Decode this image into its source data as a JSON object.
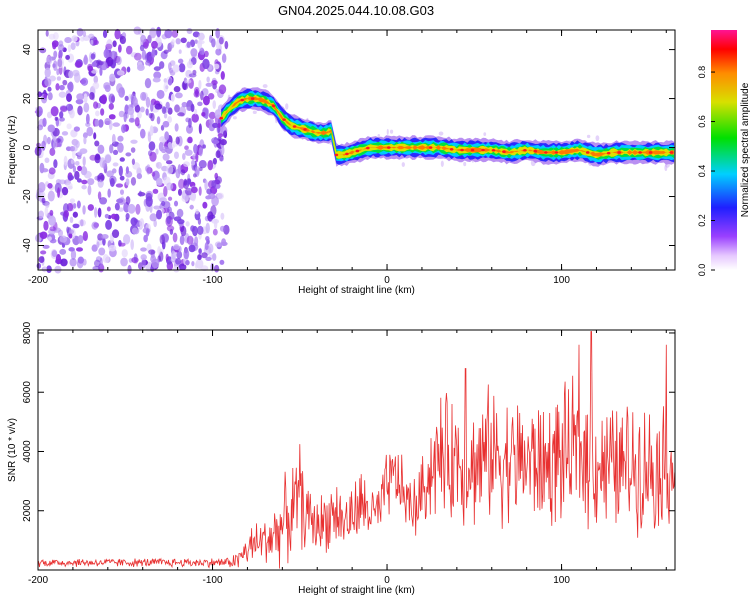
{
  "title": "GN04.2025.044.10.08.G03",
  "colors": {
    "snr_line": "#e83030",
    "axis": "#000000"
  },
  "colorbar": {
    "label": "Normalized spectral amplitude",
    "ticks": [
      "0.0",
      "0.2",
      "0.4",
      "0.6",
      "0.8"
    ],
    "tick_values": [
      0.0,
      0.2,
      0.4,
      0.6,
      0.8
    ],
    "range": [
      0.0,
      0.97
    ],
    "colormap": "rainbow (magenta-blue-cyan-green-yellow-red)"
  },
  "chart_data": [
    {
      "type": "heatmap",
      "title": "GN04.2025.044.10.08.G03",
      "xlabel": "Height of straight line (km)",
      "ylabel": "Frequency (Hz)",
      "xlim": [
        -200,
        165
      ],
      "ylim": [
        -50,
        48
      ],
      "xticks": [
        -200,
        -100,
        0,
        100
      ],
      "yticks": [
        -40,
        -20,
        0,
        20,
        40
      ],
      "xtick_labels": [
        "-200",
        "-100",
        "0",
        "100"
      ],
      "ytick_labels": [
        "-40",
        "-20",
        "0",
        "20",
        "40"
      ],
      "noise_region_x": [
        -200,
        -92
      ],
      "ridge": {
        "x": [
          -95,
          -90,
          -85,
          -80,
          -75,
          -70,
          -65,
          -60,
          -55,
          -50,
          -45,
          -40,
          -35,
          -31,
          -30,
          -25,
          -20,
          -15,
          -10,
          -5,
          0,
          10,
          20,
          30,
          40,
          50,
          60,
          70,
          80,
          90,
          100,
          110,
          120,
          130,
          140,
          150,
          165
        ],
        "freq_hz": [
          12,
          16,
          19,
          20,
          20,
          19,
          17,
          12,
          9,
          8,
          7,
          6,
          6,
          7,
          -3,
          -3,
          -2,
          -1,
          0,
          0,
          0,
          0,
          0,
          0,
          -1,
          -1,
          -1,
          -2,
          -1,
          -2,
          -2,
          -1,
          -3,
          -2,
          -2,
          -2,
          -2
        ]
      }
    },
    {
      "type": "line",
      "xlabel": "Height of straight line (km)",
      "ylabel": "SNR (10 * v/v)",
      "xlim": [
        -200,
        165
      ],
      "ylim": [
        0,
        8100
      ],
      "xticks": [
        -200,
        -100,
        0,
        100
      ],
      "yticks": [
        2000,
        4000,
        6000,
        8000
      ],
      "xtick_labels": [
        "-200",
        "-100",
        "0",
        "100"
      ],
      "ytick_labels": [
        "2000",
        "4000",
        "6000",
        "8000"
      ],
      "envelope": {
        "x": [
          -200,
          -150,
          -100,
          -90,
          -85,
          -80,
          -75,
          -70,
          -65,
          -60,
          -55,
          -50,
          -45,
          -40,
          -35,
          -30,
          -25,
          -20,
          -15,
          -10,
          -5,
          0,
          5,
          10,
          15,
          20,
          25,
          30,
          40,
          50,
          60,
          70,
          80,
          90,
          100,
          110,
          120,
          130,
          140,
          150,
          165
        ],
        "mean": [
          250,
          250,
          250,
          260,
          350,
          700,
          900,
          1000,
          1200,
          1500,
          2000,
          2200,
          1800,
          1500,
          1700,
          2000,
          1600,
          1800,
          2200,
          2000,
          1800,
          2800,
          3200,
          2500,
          2000,
          2600,
          3400,
          3800,
          3800,
          3500,
          4000,
          3700,
          3700,
          3500,
          3800,
          4000,
          3700,
          3400,
          3600,
          3500,
          3500
        ],
        "spread": [
          120,
          120,
          130,
          150,
          300,
          500,
          650,
          700,
          900,
          1100,
          1400,
          1200,
          900,
          800,
          900,
          1000,
          800,
          900,
          1000,
          900,
          800,
          1000,
          1000,
          900,
          900,
          1000,
          1400,
          1700,
          1800,
          1700,
          1900,
          1800,
          1800,
          1800,
          1900,
          2000,
          1900,
          1800,
          1800,
          1800,
          1700
        ]
      },
      "peaks": [
        {
          "x": -50,
          "y": 4250
        },
        {
          "x": 45,
          "y": 6800
        },
        {
          "x": 110,
          "y": 7600
        },
        {
          "x": 117,
          "y": 8050
        },
        {
          "x": 160,
          "y": 7600
        }
      ]
    }
  ]
}
